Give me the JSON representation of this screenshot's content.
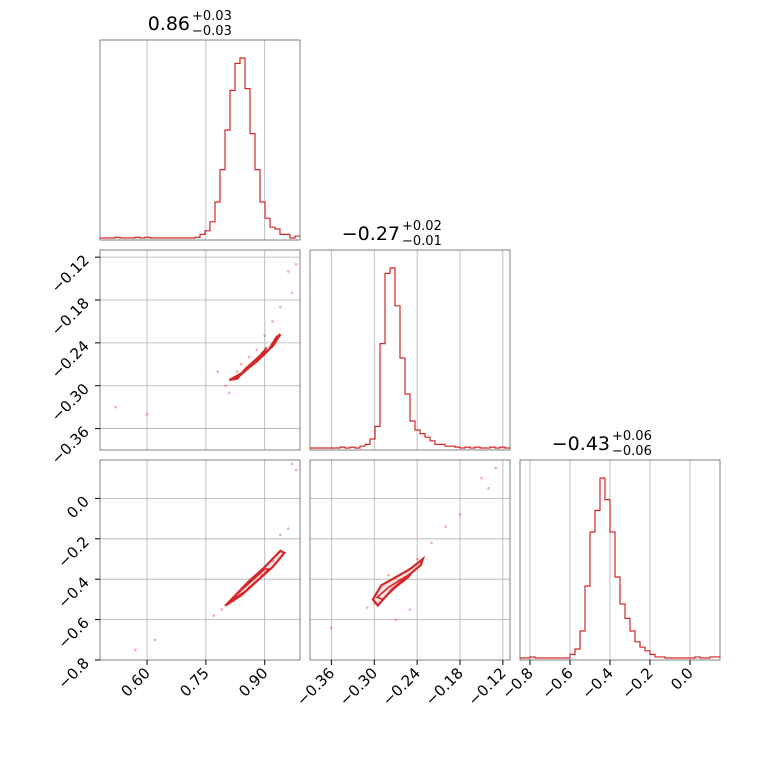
{
  "colors": {
    "series": "#d62728",
    "grid": "#b0b0b0",
    "axes": "#808080"
  },
  "chart_data": [
    {
      "type": "histogram",
      "panel": "hist-0",
      "title": {
        "median": "0.86",
        "plus": "+0.03",
        "minus": "−0.03"
      },
      "x": [
        0.484,
        0.497,
        0.509,
        0.522,
        0.535,
        0.548,
        0.56,
        0.573,
        0.586,
        0.599,
        0.611,
        0.624,
        0.637,
        0.65,
        0.662,
        0.675,
        0.688,
        0.701,
        0.713,
        0.726,
        0.739,
        0.752,
        0.764,
        0.777,
        0.79,
        0.803,
        0.815,
        0.828,
        0.841,
        0.854,
        0.866,
        0.879,
        0.892,
        0.905,
        0.917,
        0.93,
        0.943,
        0.956,
        0.968,
        0.981
      ],
      "counts": [
        0,
        0,
        0,
        0.004,
        0,
        0,
        0,
        0.004,
        0,
        0.004,
        0,
        0,
        0,
        0,
        0,
        0,
        0,
        0,
        0,
        0.004,
        0.02,
        0.04,
        0.09,
        0.2,
        0.38,
        0.6,
        0.82,
        0.97,
        1.0,
        0.83,
        0.58,
        0.38,
        0.2,
        0.11,
        0.06,
        0.05,
        0.02,
        0.02,
        0,
        0.01
      ],
      "xlim": [
        0.48,
        0.99
      ]
    },
    {
      "type": "scatter-contour",
      "panel": "pair-0-1",
      "xlim": [
        0.48,
        0.99
      ],
      "ylim": [
        -0.39,
        -0.11
      ],
      "points": [
        [
          0.94,
          -0.19
        ],
        [
          0.96,
          -0.14
        ],
        [
          0.98,
          -0.13
        ],
        [
          0.97,
          -0.17
        ],
        [
          0.6,
          -0.34
        ],
        [
          0.52,
          -0.33
        ],
        [
          0.88,
          -0.25
        ],
        [
          0.86,
          -0.26
        ],
        [
          0.84,
          -0.27
        ],
        [
          0.83,
          -0.28
        ],
        [
          0.82,
          -0.29
        ],
        [
          0.8,
          -0.3
        ],
        [
          0.9,
          -0.23
        ],
        [
          0.92,
          -0.21
        ],
        [
          0.78,
          -0.28
        ],
        [
          0.81,
          -0.31
        ]
      ],
      "levels": [
        {
          "x": [
            0.81,
            0.84,
            0.88,
            0.91,
            0.93,
            0.94,
            0.92,
            0.88,
            0.85,
            0.83,
            0.81
          ],
          "y": [
            -0.292,
            -0.283,
            -0.266,
            -0.25,
            -0.232,
            -0.228,
            -0.245,
            -0.262,
            -0.277,
            -0.29,
            -0.292
          ]
        },
        {
          "x": [
            0.823,
            0.85,
            0.88,
            0.9,
            0.905,
            0.885,
            0.86,
            0.835,
            0.823
          ],
          "y": [
            -0.289,
            -0.279,
            -0.262,
            -0.25,
            -0.246,
            -0.262,
            -0.275,
            -0.287,
            -0.289
          ]
        }
      ]
    },
    {
      "type": "histogram",
      "panel": "hist-1",
      "title": {
        "median": "−0.27",
        "plus": "+0.02",
        "minus": "−0.01"
      },
      "x": [
        -0.389,
        -0.382,
        -0.375,
        -0.368,
        -0.361,
        -0.354,
        -0.347,
        -0.34,
        -0.333,
        -0.326,
        -0.319,
        -0.312,
        -0.305,
        -0.298,
        -0.291,
        -0.284,
        -0.277,
        -0.27,
        -0.263,
        -0.256,
        -0.249,
        -0.242,
        -0.235,
        -0.228,
        -0.221,
        -0.214,
        -0.207,
        -0.2,
        -0.193,
        -0.186,
        -0.179,
        -0.172,
        -0.165,
        -0.158,
        -0.151,
        -0.144,
        -0.137,
        -0.13,
        -0.123,
        -0.116
      ],
      "counts": [
        0,
        0,
        0,
        0,
        0,
        0,
        0.005,
        0,
        0.005,
        0,
        0.01,
        0.02,
        0.05,
        0.12,
        0.58,
        0.97,
        1.0,
        0.79,
        0.5,
        0.3,
        0.15,
        0.1,
        0.08,
        0.06,
        0.04,
        0.02,
        0.02,
        0.01,
        0.01,
        0.005,
        0,
        0.005,
        0,
        0.005,
        0,
        0,
        0.005,
        0,
        0.005,
        0
      ],
      "xlim": [
        -0.39,
        -0.11
      ]
    },
    {
      "type": "scatter-contour",
      "panel": "pair-0-2",
      "xlim": [
        0.48,
        0.99
      ],
      "ylim": [
        -0.8,
        0.19
      ],
      "points": [
        [
          0.97,
          0.17
        ],
        [
          0.98,
          0.14
        ],
        [
          0.96,
          -0.15
        ],
        [
          0.94,
          -0.18
        ],
        [
          0.62,
          -0.7
        ],
        [
          0.57,
          -0.75
        ],
        [
          0.77,
          -0.58
        ],
        [
          0.79,
          -0.55
        ],
        [
          0.82,
          -0.51
        ],
        [
          0.86,
          -0.44
        ],
        [
          0.89,
          -0.38
        ],
        [
          0.92,
          -0.31
        ],
        [
          0.8,
          -0.53
        ]
      ],
      "levels": [
        {
          "x": [
            0.8,
            0.84,
            0.88,
            0.92,
            0.95,
            0.94,
            0.9,
            0.86,
            0.82,
            0.8
          ],
          "y": [
            -0.53,
            -0.48,
            -0.41,
            -0.34,
            -0.27,
            -0.26,
            -0.34,
            -0.41,
            -0.49,
            -0.53
          ]
        },
        {
          "x": [
            0.81,
            0.85,
            0.89,
            0.91,
            0.9,
            0.86,
            0.82,
            0.81
          ],
          "y": [
            -0.51,
            -0.46,
            -0.39,
            -0.35,
            -0.35,
            -0.42,
            -0.49,
            -0.51
          ]
        }
      ]
    },
    {
      "type": "scatter-contour",
      "panel": "pair-1-2",
      "xlim": [
        -0.39,
        -0.11
      ],
      "ylim": [
        -0.8,
        0.19
      ],
      "points": [
        [
          -0.14,
          0.05
        ],
        [
          -0.13,
          0.15
        ],
        [
          -0.15,
          0.1
        ],
        [
          -0.18,
          -0.08
        ],
        [
          -0.2,
          -0.14
        ],
        [
          -0.22,
          -0.22
        ],
        [
          -0.24,
          -0.3
        ],
        [
          -0.3,
          -0.52
        ],
        [
          -0.31,
          -0.54
        ],
        [
          -0.25,
          -0.55
        ],
        [
          -0.27,
          -0.6
        ],
        [
          -0.36,
          -0.64
        ],
        [
          -0.28,
          -0.38
        ]
      ],
      "levels": [
        {
          "x": [
            -0.302,
            -0.29,
            -0.27,
            -0.25,
            -0.232,
            -0.235,
            -0.255,
            -0.275,
            -0.295,
            -0.302
          ],
          "y": [
            -0.5,
            -0.43,
            -0.39,
            -0.35,
            -0.3,
            -0.33,
            -0.39,
            -0.45,
            -0.53,
            -0.5
          ]
        },
        {
          "x": [
            -0.296,
            -0.28,
            -0.262,
            -0.248,
            -0.252,
            -0.27,
            -0.288,
            -0.296
          ],
          "y": [
            -0.49,
            -0.44,
            -0.4,
            -0.37,
            -0.39,
            -0.44,
            -0.5,
            -0.49
          ]
        }
      ]
    },
    {
      "type": "histogram",
      "panel": "hist-2",
      "title": {
        "median": "−0.43",
        "plus": "+0.06",
        "minus": "−0.06"
      },
      "x": [
        -0.84,
        -0.82,
        -0.79,
        -0.77,
        -0.74,
        -0.72,
        -0.69,
        -0.67,
        -0.64,
        -0.62,
        -0.59,
        -0.57,
        -0.54,
        -0.52,
        -0.49,
        -0.47,
        -0.44,
        -0.42,
        -0.39,
        -0.37,
        -0.34,
        -0.32,
        -0.29,
        -0.27,
        -0.24,
        -0.22,
        -0.19,
        -0.17,
        -0.14,
        -0.12,
        -0.09,
        -0.07,
        -0.04,
        -0.02,
        0.01,
        0.03,
        0.06,
        0.08,
        0.11,
        0.13
      ],
      "counts": [
        0,
        0,
        0.006,
        0,
        0,
        0,
        0,
        0,
        0,
        0,
        0.02,
        0.05,
        0.15,
        0.4,
        0.7,
        0.82,
        1.0,
        0.88,
        0.7,
        0.45,
        0.3,
        0.22,
        0.15,
        0.09,
        0.06,
        0.04,
        0.02,
        0.006,
        0.006,
        0,
        0,
        0,
        0,
        0,
        0,
        0.006,
        0,
        0,
        0.006,
        0.006
      ],
      "xlim": [
        -0.85,
        0.15
      ]
    }
  ],
  "axes": {
    "left_ticks_row1": [
      "−0.12",
      "−0.18",
      "−0.24",
      "−0.30",
      "−0.36"
    ],
    "left_ticks_row2": [
      "0.0",
      "−0.2",
      "−0.4",
      "−0.6",
      "−0.8"
    ],
    "bottom_ticks_col0": [
      "0.60",
      "0.75",
      "0.90"
    ],
    "bottom_ticks_col1": [
      "−0.36",
      "−0.30",
      "−0.24",
      "−0.18",
      "−0.12"
    ],
    "bottom_ticks_col2": [
      "−0.8",
      "−0.6",
      "−0.4",
      "−0.2",
      "0.0"
    ]
  }
}
